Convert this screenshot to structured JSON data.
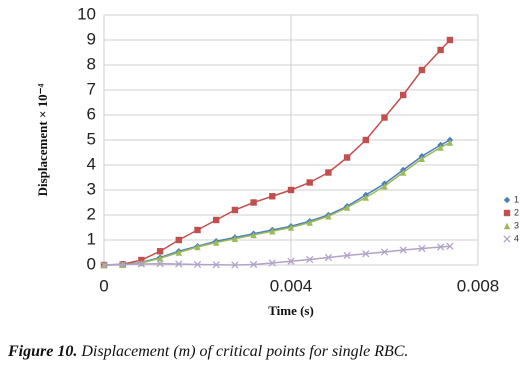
{
  "chart_data": {
    "type": "scatter",
    "y_label": "Displacement × 10⁻⁴",
    "x_label": "Time (s)",
    "caption_label": "Figure 10.",
    "caption_text": "Displacement (m) of critical points for single RBC.",
    "x": [
      0,
      0.0004,
      0.0008,
      0.0012,
      0.0016,
      0.002,
      0.0024,
      0.0028,
      0.0032,
      0.0036,
      0.004,
      0.0044,
      0.0048,
      0.0052,
      0.0056,
      0.006,
      0.0064,
      0.0068,
      0.0072,
      0.0074
    ],
    "series": [
      {
        "name": "1",
        "color": "#4a7ebb",
        "marker": "diamond",
        "values": [
          0,
          0.01,
          0.1,
          0.3,
          0.55,
          0.75,
          0.95,
          1.1,
          1.25,
          1.4,
          1.55,
          1.75,
          2.0,
          2.35,
          2.8,
          3.25,
          3.8,
          4.35,
          4.8,
          5.0
        ]
      },
      {
        "name": "2",
        "color": "#c0504d",
        "marker": "square",
        "values": [
          0,
          0.03,
          0.2,
          0.55,
          1.0,
          1.4,
          1.8,
          2.2,
          2.5,
          2.75,
          3.0,
          3.3,
          3.7,
          4.3,
          5.0,
          5.9,
          6.8,
          7.8,
          8.6,
          9.0
        ]
      },
      {
        "name": "3",
        "color": "#9bbb59",
        "marker": "triangle",
        "values": [
          0,
          0.01,
          0.08,
          0.27,
          0.5,
          0.72,
          0.9,
          1.05,
          1.2,
          1.35,
          1.5,
          1.7,
          1.95,
          2.3,
          2.7,
          3.15,
          3.7,
          4.25,
          4.7,
          4.9
        ]
      },
      {
        "name": "4",
        "color": "#b3a2c7",
        "marker": "x",
        "values": [
          0,
          0.02,
          0.04,
          0.05,
          0.04,
          0.02,
          0.01,
          0.0,
          0.02,
          0.08,
          0.15,
          0.22,
          0.3,
          0.38,
          0.45,
          0.52,
          0.6,
          0.66,
          0.72,
          0.75
        ]
      }
    ],
    "xlim": [
      0,
      0.008
    ],
    "xticks": [
      0,
      0.004,
      0.008
    ],
    "ylim": [
      0,
      10
    ],
    "yticks": [
      0,
      1,
      2,
      3,
      4,
      5,
      6,
      7,
      8,
      9,
      10
    ],
    "grid": true,
    "legend": "right"
  }
}
